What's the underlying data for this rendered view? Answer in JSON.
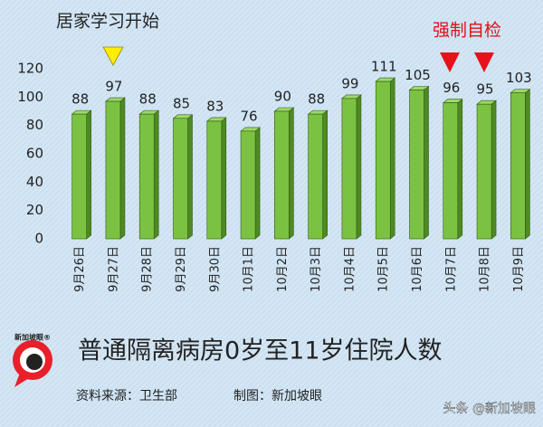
{
  "chart_data": {
    "type": "bar",
    "title": "普通隔离病房0岁至11岁住院人数",
    "annotations": [
      "居家学习开始",
      "强制自检"
    ],
    "source": "资料来源：卫生部",
    "credit": "制图：新加坡眼",
    "logo_text": "新加坡眼®",
    "watermark": "头条 @新加坡眼",
    "categories": [
      "9月26日",
      "9月27日",
      "9月28日",
      "9月29日",
      "9月30日",
      "10月1日",
      "10月2日",
      "10月3日",
      "10月4日",
      "10月5日",
      "10月6日",
      "10月7日",
      "10月8日",
      "10月9日"
    ],
    "values": [
      88,
      97,
      88,
      85,
      83,
      76,
      90,
      88,
      99,
      111,
      105,
      96,
      95,
      103
    ],
    "color": "#7cc242",
    "ylim": [
      0,
      120
    ],
    "yticks": [
      0,
      20,
      40,
      60,
      80,
      100,
      120
    ],
    "grid": false
  }
}
